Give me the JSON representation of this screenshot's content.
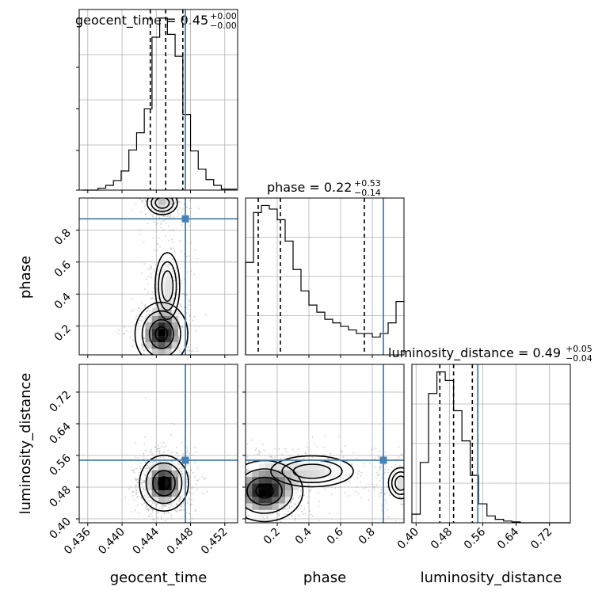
{
  "colors": {
    "truth": "#4682b4",
    "hist": "#000000",
    "grid": "#b0b0b0",
    "scatter": "#aaaaaa"
  },
  "chart_data": [
    {
      "type": "histogram",
      "panel": "geocent_time-marginal",
      "title": {
        "text": "geocent_time = 0.45",
        "sup": "+0.00",
        "sub": "−0.00"
      },
      "xlim": [
        0.435,
        0.4535
      ],
      "bin_edges": [
        0.4354,
        0.4363,
        0.4372,
        0.4381,
        0.439,
        0.4399,
        0.4408,
        0.4417,
        0.4426,
        0.4435,
        0.4444,
        0.4453,
        0.4462,
        0.4471,
        0.448,
        0.4489,
        0.4498,
        0.4507,
        0.4516,
        0.4525,
        0.4534
      ],
      "counts": [
        0,
        0,
        2,
        5,
        10,
        20,
        42,
        60,
        85,
        160,
        180,
        163,
        140,
        79,
        41,
        22,
        11,
        5,
        1,
        1
      ],
      "quantiles": [
        0.4433,
        0.4451,
        0.4471
      ],
      "truth": 0.4474
    },
    {
      "type": "histogram",
      "panel": "phase-marginal",
      "title": {
        "text": "phase = 0.22",
        "sup": "+0.53",
        "sub": "−0.14"
      },
      "xlim": [
        0.0,
        1.0
      ],
      "bin_edges": [
        0.0,
        0.05,
        0.1,
        0.15,
        0.2,
        0.25,
        0.3,
        0.35,
        0.4,
        0.45,
        0.5,
        0.55,
        0.6,
        0.65,
        0.7,
        0.75,
        0.8,
        0.85,
        0.9,
        0.95,
        1.0
      ],
      "counts": [
        130,
        200,
        210,
        205,
        190,
        160,
        120,
        90,
        70,
        60,
        50,
        45,
        40,
        35,
        30,
        30,
        25,
        30,
        45,
        75
      ],
      "quantiles": [
        0.08,
        0.22,
        0.75
      ],
      "truth": 0.87
    },
    {
      "type": "histogram",
      "panel": "luminosity_distance-marginal",
      "title": {
        "text": "luminosity_distance = 0.49",
        "sup": "+0.05",
        "sub": "−0.04"
      },
      "xlim": [
        0.39,
        0.77
      ],
      "bin_edges": [
        0.39,
        0.41,
        0.43,
        0.45,
        0.47,
        0.49,
        0.51,
        0.53,
        0.55,
        0.57,
        0.59,
        0.61,
        0.63,
        0.65,
        0.67,
        0.69,
        0.71,
        0.73,
        0.75,
        0.77
      ],
      "counts": [
        10,
        70,
        150,
        175,
        165,
        130,
        95,
        55,
        22,
        8,
        4,
        2,
        1,
        0,
        0,
        0,
        0,
        0,
        0
      ],
      "quantiles": [
        0.457,
        0.49,
        0.535
      ],
      "truth": 0.548
    },
    {
      "type": "contour",
      "panel": "phase-vs-geocent_time",
      "x": "geocent_time",
      "y": "phase",
      "xlim": [
        0.435,
        0.4535
      ],
      "ylim": [
        0.02,
        1.0
      ],
      "truth": {
        "x": 0.4474,
        "y": 0.87
      },
      "blobs": [
        {
          "cx": 0.4446,
          "cy": 0.15,
          "sx": 0.0014,
          "sy": 0.09,
          "w": 1.0
        },
        {
          "cx": 0.4453,
          "cy": 0.45,
          "sx": 0.0011,
          "sy": 0.16,
          "w": 0.35
        },
        {
          "cx": 0.4447,
          "cy": 0.97,
          "sx": 0.0012,
          "sy": 0.05,
          "w": 0.45
        }
      ]
    },
    {
      "type": "contour",
      "panel": "luminosity_distance-vs-geocent_time",
      "x": "geocent_time",
      "y": "luminosity_distance",
      "xlim": [
        0.435,
        0.4535
      ],
      "ylim": [
        0.39,
        0.79
      ],
      "truth": {
        "x": 0.4474,
        "y": 0.548
      },
      "blobs": [
        {
          "cx": 0.4449,
          "cy": 0.49,
          "sx": 0.0013,
          "sy": 0.032,
          "w": 1.0
        }
      ]
    },
    {
      "type": "contour",
      "panel": "luminosity_distance-vs-phase",
      "x": "phase",
      "y": "luminosity_distance",
      "xlim": [
        0.0,
        1.0
      ],
      "ylim": [
        0.39,
        0.79
      ],
      "truth": {
        "x": 0.87,
        "y": 0.548
      },
      "blobs": [
        {
          "cx": 0.12,
          "cy": 0.47,
          "sx": 0.11,
          "sy": 0.035,
          "w": 1.0
        },
        {
          "cx": 0.42,
          "cy": 0.52,
          "sx": 0.2,
          "sy": 0.03,
          "w": 0.35
        },
        {
          "cx": 0.98,
          "cy": 0.49,
          "sx": 0.06,
          "sy": 0.03,
          "w": 0.35
        }
      ]
    }
  ],
  "axes": {
    "xlabels": [
      "geocent_time",
      "phase",
      "luminosity_distance"
    ],
    "ylabels": [
      "phase",
      "luminosity_distance"
    ],
    "geocent_time_ticks": [
      "0.436",
      "0.440",
      "0.444",
      "0.448",
      "0.452"
    ],
    "geocent_time_tick_values": [
      0.436,
      0.44,
      0.444,
      0.448,
      0.452
    ],
    "phase_x_ticks": [
      "0.2",
      "0.4",
      "0.6",
      "0.8"
    ],
    "phase_x_tick_values": [
      0.2,
      0.4,
      0.6,
      0.8
    ],
    "phase_y_ticks": [
      "0.2",
      "0.4",
      "0.6",
      "0.8"
    ],
    "phase_y_tick_values": [
      0.2,
      0.4,
      0.6,
      0.8
    ],
    "ld_ticks": [
      "0.40",
      "0.48",
      "0.56",
      "0.64",
      "0.72"
    ],
    "ld_tick_values": [
      0.4,
      0.48,
      0.56,
      0.64,
      0.72
    ],
    "ld_x_ticks": [
      "0.40",
      "0.48",
      "0.56",
      "0.64",
      "0.72"
    ],
    "ld_x_tick_values": [
      0.4,
      0.48,
      0.56,
      0.64,
      0.72
    ]
  }
}
